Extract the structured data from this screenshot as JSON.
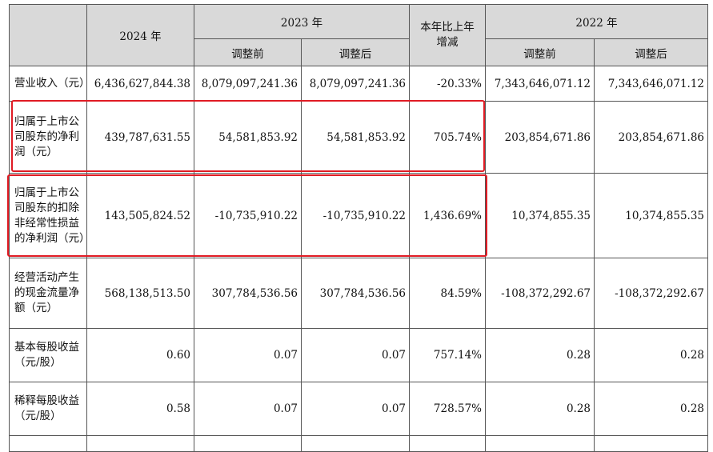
{
  "header": {
    "y2024": "2024 年",
    "y2023": "2023 年",
    "change": "本年比上年增减",
    "y2022": "2022 年",
    "before_adj": "调整前",
    "after_adj": "调整后"
  },
  "rows": [
    {
      "label": "营业收入（元）",
      "v2024": "6,436,627,844.38",
      "v2023_before": "8,079,097,241.36",
      "v2023_after": "8,079,097,241.36",
      "change": "-20.33%",
      "v2022_before": "7,343,646,071.12",
      "v2022_after": "7,343,646,071.12"
    },
    {
      "label": "归属于上市公司股东的净利润（元）",
      "v2024": "439,787,631.55",
      "v2023_before": "54,581,853.92",
      "v2023_after": "54,581,853.92",
      "change": "705.74%",
      "v2022_before": "203,854,671.86",
      "v2022_after": "203,854,671.86"
    },
    {
      "label": "归属于上市公司股东的扣除非经常性损益的净利润（元）",
      "v2024": "143,505,824.52",
      "v2023_before": "-10,735,910.22",
      "v2023_after": "-10,735,910.22",
      "change": "1,436.69%",
      "v2022_before": "10,374,855.35",
      "v2022_after": "10,374,855.35"
    },
    {
      "label": "经营活动产生的现金流量净额（元）",
      "v2024": "568,138,513.50",
      "v2023_before": "307,784,536.56",
      "v2023_after": "307,784,536.56",
      "change": "84.59%",
      "v2022_before": "-108,372,292.67",
      "v2022_after": "-108,372,292.67"
    },
    {
      "label": "基本每股收益（元/股）",
      "v2024": "0.60",
      "v2023_before": "0.07",
      "v2023_after": "0.07",
      "change": "757.14%",
      "v2022_before": "0.28",
      "v2022_after": "0.28"
    },
    {
      "label": "稀释每股收益（元/股）",
      "v2024": "0.58",
      "v2023_before": "0.07",
      "v2023_after": "0.07",
      "change": "728.57%",
      "v2022_before": "0.28",
      "v2022_after": "0.28"
    }
  ],
  "colors": {
    "header_bg": "#d9d9d9",
    "highlight_border": "#e01b24",
    "grid": "#555555"
  }
}
